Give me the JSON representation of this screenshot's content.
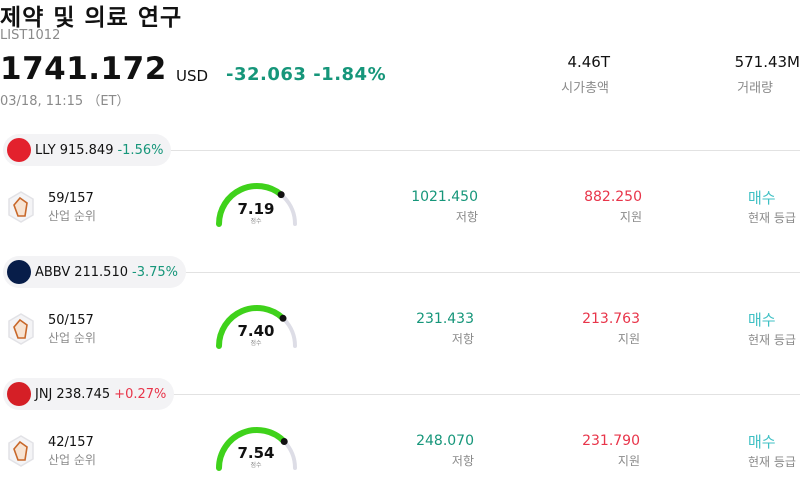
{
  "header": {
    "title": "제약 및 의료 연구",
    "code": "LIST1012",
    "price": "1741.172",
    "currency": "USD",
    "change": "-32.063 -1.84%",
    "time": "03/18, 11:15 （ET）",
    "market_cap": {
      "value": "4.46T",
      "label": "시가총액"
    },
    "volume": {
      "value": "571.43M",
      "label": "거래량"
    }
  },
  "labels": {
    "industry_rank": "산업 순위",
    "score": "점수",
    "resistance": "저항",
    "support": "지원",
    "current_rating": "현재 등급"
  },
  "colors": {
    "up": "#e8354a",
    "down": "#16967a",
    "gauge": "#3fd21b",
    "rating": "#3fc0c4"
  },
  "stocks": [
    {
      "ticker": "LLY",
      "price": "915.849",
      "change": "-1.56%",
      "logo_text": "Lilly",
      "logo_color": "#e3212d",
      "rank": "59/157",
      "score": "7.19",
      "score_value": 7.19,
      "resistance": "1021.450",
      "support": "882.250",
      "rating": "매수"
    },
    {
      "ticker": "ABBV",
      "price": "211.510",
      "change": "-3.75%",
      "logo_text": "abbvie",
      "logo_color": "#071d49",
      "rank": "50/157",
      "score": "7.40",
      "score_value": 7.4,
      "resistance": "231.433",
      "support": "213.763",
      "rating": "매수"
    },
    {
      "ticker": "JNJ",
      "price": "238.745",
      "change": "+0.27%",
      "logo_text": "J&J",
      "logo_color": "#d51f26",
      "rank": "42/157",
      "score": "7.54",
      "score_value": 7.54,
      "resistance": "248.070",
      "support": "231.790",
      "rating": "매수"
    }
  ]
}
